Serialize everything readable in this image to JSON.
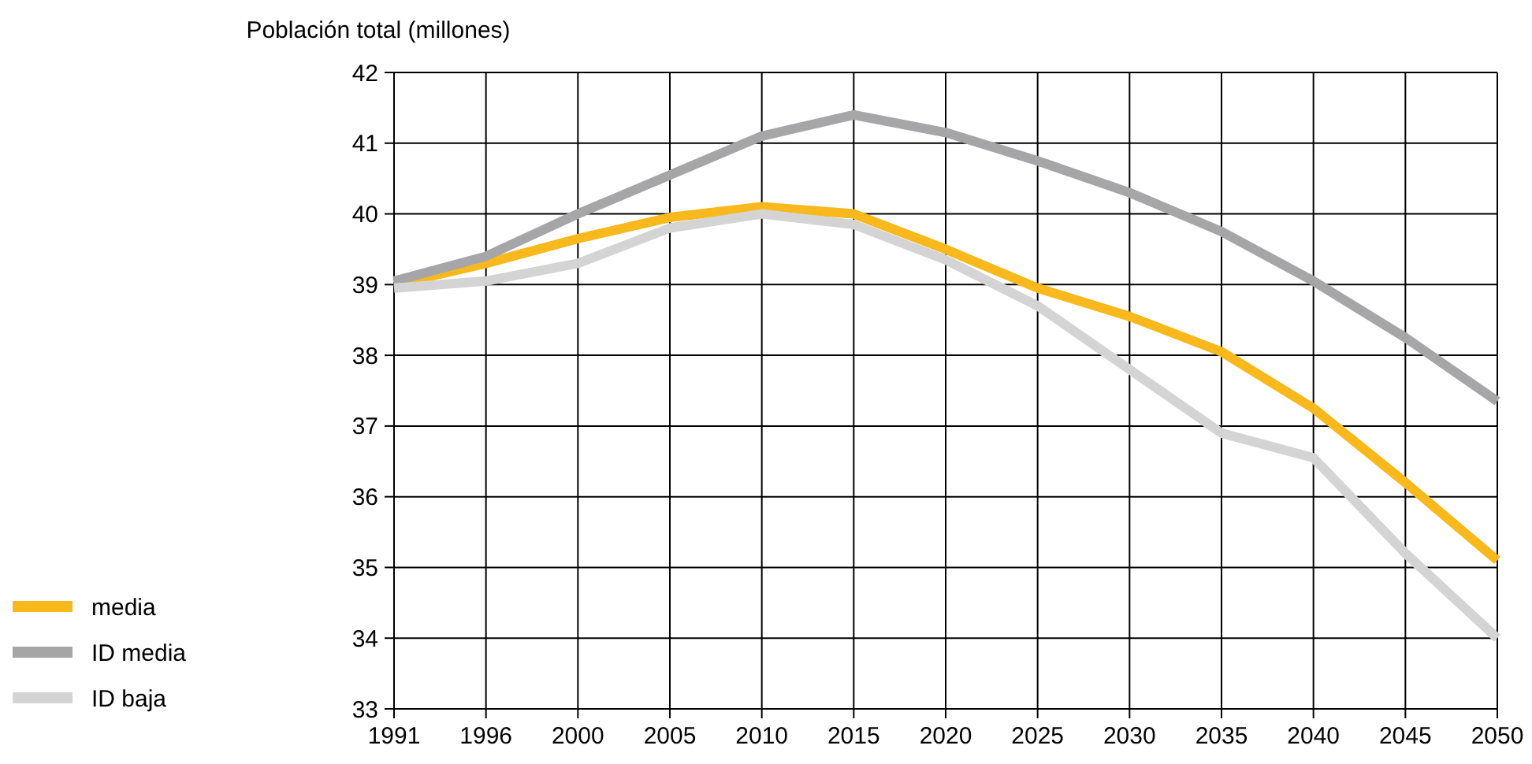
{
  "chart_data": {
    "type": "line",
    "ylabel": "Población total (millones)",
    "categories": [
      "1991",
      "1996",
      "2000",
      "2005",
      "2010",
      "2015",
      "2020",
      "2025",
      "2030",
      "2035",
      "2040",
      "2045",
      "2050"
    ],
    "series": [
      {
        "name": "media",
        "color": "#f9b81b",
        "values": [
          39.0,
          39.3,
          39.65,
          39.95,
          40.1,
          40.0,
          39.5,
          38.95,
          38.55,
          38.05,
          37.25,
          36.2,
          35.1
        ]
      },
      {
        "name": "ID media",
        "color": "#a6a6a9",
        "values": [
          39.05,
          39.4,
          40.0,
          40.55,
          41.1,
          41.4,
          41.15,
          40.75,
          40.3,
          39.75,
          39.05,
          38.25,
          37.35
        ]
      },
      {
        "name": "ID baja",
        "color": "#d4d4d4",
        "values": [
          38.95,
          39.05,
          39.3,
          39.8,
          40.0,
          39.85,
          39.35,
          38.7,
          37.8,
          36.9,
          36.55,
          35.2,
          34.0
        ]
      }
    ],
    "ylim": [
      33,
      42
    ],
    "yticks": [
      33,
      34,
      35,
      36,
      37,
      38,
      39,
      40,
      41,
      42
    ],
    "grid": true,
    "legend": "bottom left",
    "marker": "none",
    "line_style": "solid"
  }
}
